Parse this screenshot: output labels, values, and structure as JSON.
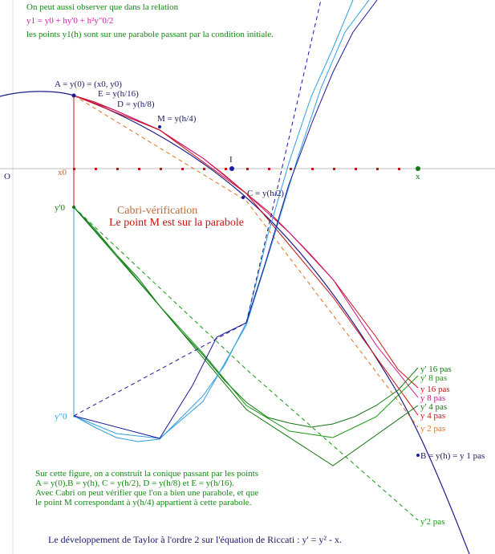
{
  "colors": {
    "axis": "#b8b8b8",
    "parabola": "#1c1c8a",
    "red": "#cc1111",
    "magenta": "#cc1188",
    "orange": "#e07020",
    "green": "#119911",
    "darkgreen": "#117711",
    "cyan": "#2e9fe0",
    "blue": "#1a1a9a",
    "brown": "#b86a3a",
    "text_green": "#118811",
    "text_magenta": "#cc22aa",
    "text_dark": "#1a1a66"
  },
  "intro": {
    "line1": "On peut aussi observer que dans la relation",
    "formula": "y1 = y0 + hy'0 + h²y\"0/2",
    "line3": "les points y1(h) sont sur une parabole passant par la condition initiale."
  },
  "points": {
    "A": "A = y(0) = (x0, y0)",
    "E": "E = y(h/16)",
    "D": "D = y(h/8)",
    "M": "M = y(h/4)",
    "C": "C = y(h/2)",
    "B": "B = y(h) = y 1 pas",
    "I": "I",
    "O": "O",
    "x": "x",
    "x0": "x0",
    "yp0": "y'0",
    "ypp0": "y\"0"
  },
  "cabri": {
    "title": "Cabri-vérification",
    "subtitle": "Le point M est sur la parabole"
  },
  "legend": {
    "yp16": "y' 16 pas",
    "yp8": "y' 8 pas",
    "y16": "y 16 pas",
    "y8": "y 8 pas",
    "yp4": "y' 4 pas",
    "y4": "y 4 pas",
    "y2": "y 2 pas",
    "yp2": "y'2 pas"
  },
  "note": {
    "line1": "Sur cette figure, on a construit la conique passant par les points",
    "line2": "A = y(0),B =  y(h), C = y(h/2), D = y(h/8) et E =  y(h/16).",
    "line3": "Avec Cabri on peut vérifier que l'on a bien une parabole, et que",
    "line4": "le point M correspondant à y(h/4) appartient à cette parabole."
  },
  "footer": "Le développement de Taylor à l'ordre 2 sur l'équation de Riccati : y' = y² - x."
}
